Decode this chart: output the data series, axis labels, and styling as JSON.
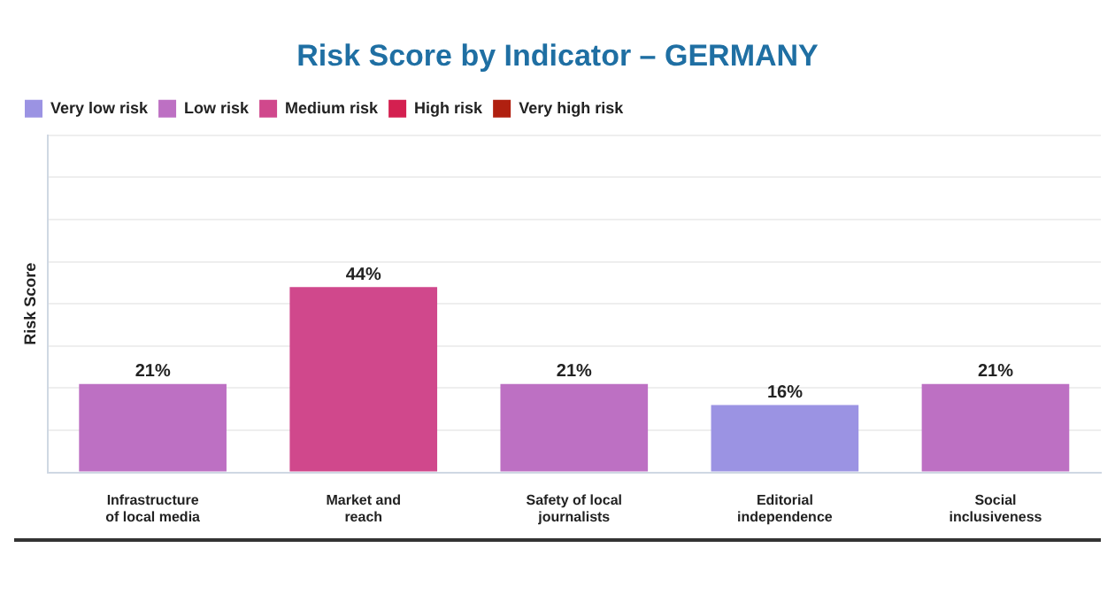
{
  "chart_data": {
    "type": "bar",
    "title": "Risk Score by Indicator – GERMANY",
    "ylabel": "Risk Score",
    "categories": [
      "Infrastructure\nof local media",
      "Market and\nreach",
      "Safety of local\njournalists",
      "Editorial\nindependence",
      "Social\ninclusiveness"
    ],
    "series": [
      {
        "name": "Very low risk",
        "color": "#9b93e3",
        "values": [
          null,
          null,
          null,
          16,
          null
        ],
        "value_labels": [
          null,
          null,
          null,
          "16%",
          null
        ]
      },
      {
        "name": "Low risk",
        "color": "#bd70c3",
        "values": [
          21,
          null,
          21,
          null,
          21
        ],
        "value_labels": [
          "21%",
          null,
          "21%",
          null,
          "21%"
        ]
      },
      {
        "name": "Medium risk",
        "color": "#d0488c",
        "values": [
          null,
          44,
          null,
          null,
          null
        ],
        "value_labels": [
          null,
          "44%",
          null,
          null,
          null
        ]
      },
      {
        "name": "High risk",
        "color": "#d42050",
        "values": [
          null,
          null,
          null,
          null,
          null
        ]
      },
      {
        "name": "Very high risk",
        "color": "#b02010",
        "values": [
          null,
          null,
          null,
          null,
          null
        ]
      }
    ],
    "stacked": true,
    "grid": "y",
    "legend": "top left",
    "tick_labels": "x"
  }
}
